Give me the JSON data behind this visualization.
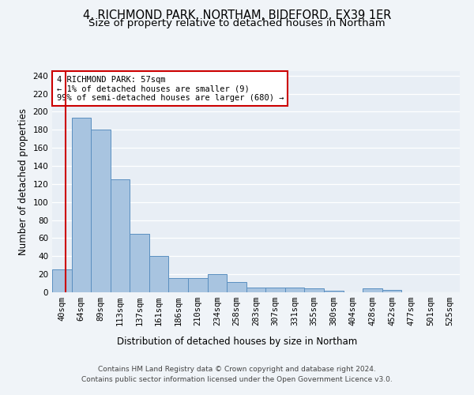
{
  "title_line1": "4, RICHMOND PARK, NORTHAM, BIDEFORD, EX39 1ER",
  "title_line2": "Size of property relative to detached houses in Northam",
  "xlabel": "Distribution of detached houses by size in Northam",
  "ylabel": "Number of detached properties",
  "bin_labels": [
    "40sqm",
    "64sqm",
    "89sqm",
    "113sqm",
    "137sqm",
    "161sqm",
    "186sqm",
    "210sqm",
    "234sqm",
    "258sqm",
    "283sqm",
    "307sqm",
    "331sqm",
    "355sqm",
    "380sqm",
    "404sqm",
    "428sqm",
    "452sqm",
    "477sqm",
    "501sqm",
    "525sqm"
  ],
  "bar_heights": [
    25,
    193,
    180,
    125,
    65,
    40,
    16,
    16,
    20,
    11,
    5,
    5,
    5,
    4,
    2,
    0,
    4,
    3,
    0,
    0,
    0
  ],
  "bar_color": "#a8c4e0",
  "bar_edge_color": "#5a8fc0",
  "highlight_color": "#cc0000",
  "annotation_text": "4 RICHMOND PARK: 57sqm\n← 1% of detached houses are smaller (9)\n99% of semi-detached houses are larger (680) →",
  "annotation_box_color": "#ffffff",
  "annotation_box_edge": "#cc0000",
  "ylim": [
    0,
    245
  ],
  "yticks": [
    0,
    20,
    40,
    60,
    80,
    100,
    120,
    140,
    160,
    180,
    200,
    220,
    240
  ],
  "footer_line1": "Contains HM Land Registry data © Crown copyright and database right 2024.",
  "footer_line2": "Contains public sector information licensed under the Open Government Licence v3.0.",
  "bg_color": "#f0f4f8",
  "plot_bg_color": "#e8eef5",
  "grid_color": "#ffffff",
  "title_fontsize": 10.5,
  "subtitle_fontsize": 9.5,
  "axis_label_fontsize": 8.5,
  "tick_fontsize": 7.5,
  "footer_fontsize": 6.5
}
